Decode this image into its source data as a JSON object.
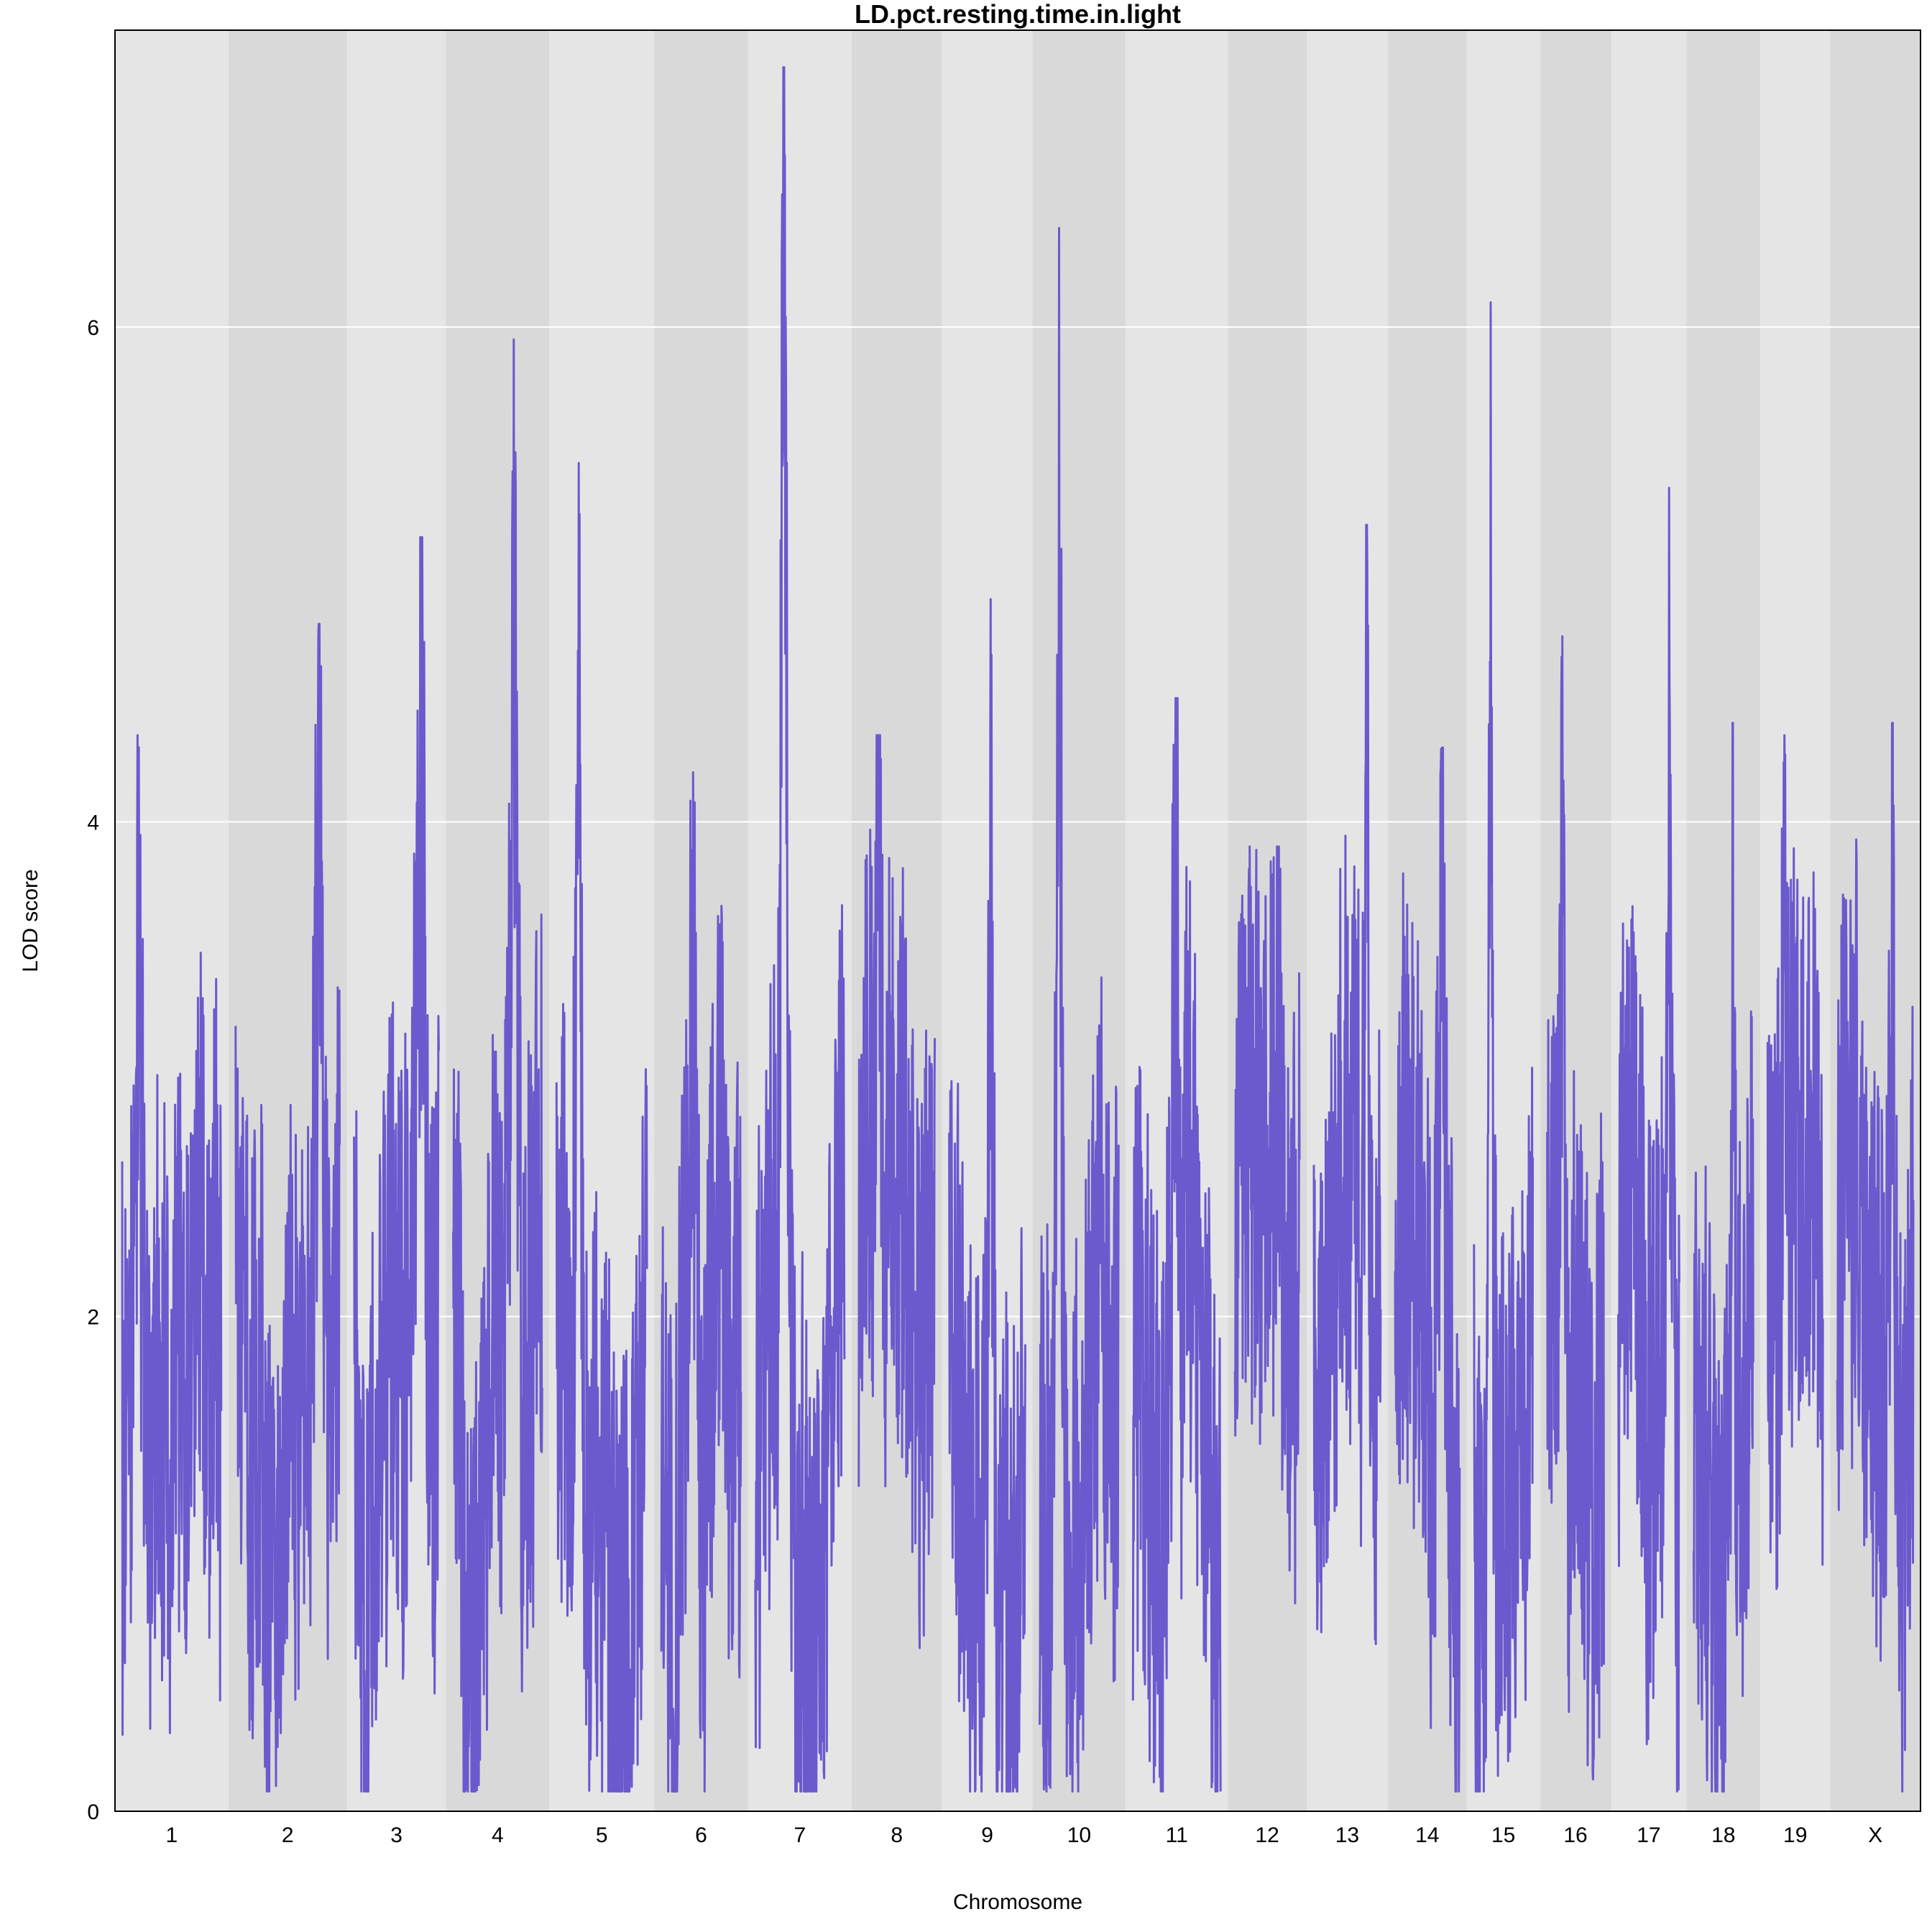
{
  "chart_data": {
    "type": "line",
    "title": "LD.pct.resting.time.in.light",
    "xlabel": "Chromosome",
    "ylabel": "LOD score",
    "ylim": [
      0,
      7.2
    ],
    "yticks": [
      0,
      2,
      4,
      6
    ],
    "grid": true,
    "line_color": "#6A5ACD",
    "band_colors": [
      "#E5E5E5",
      "#D9D9D9"
    ],
    "chromosomes": [
      "1",
      "2",
      "3",
      "4",
      "5",
      "6",
      "7",
      "8",
      "9",
      "10",
      "11",
      "12",
      "13",
      "14",
      "15",
      "16",
      "17",
      "18",
      "19",
      "X"
    ],
    "chromosome_peaks": [
      4.35,
      4.8,
      5.15,
      5.95,
      5.45,
      4.2,
      7.05,
      4.35,
      4.9,
      6.4,
      4.5,
      3.9,
      5.2,
      4.3,
      6.1,
      4.75,
      5.35,
      4.4,
      4.35,
      4.4
    ],
    "series": [
      {
        "name": "",
        "seed": 1234
      }
    ]
  }
}
